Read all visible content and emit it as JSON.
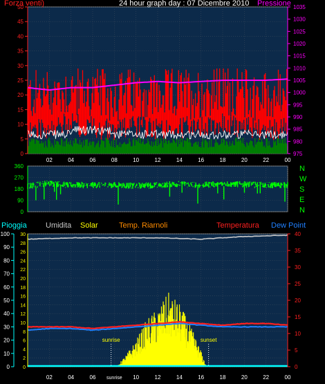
{
  "header": {
    "wind_label": "Forza venti)",
    "title": "24 hour graph day : 07 Dicembre 2010",
    "pressure_label": "Pressione"
  },
  "legend": {
    "rain": "Pioggia",
    "humidity": "Umidita",
    "solar": "Solar",
    "temp_riarnoli": "Temp. Riarnoli",
    "temperature": "Temperatura",
    "dew_point": "Dew Point"
  },
  "wind_direction_letters": [
    "N",
    "W",
    "S",
    "E",
    "N"
  ],
  "markers": {
    "sunrise": "sunrise",
    "sunset": "sunset"
  },
  "colors": {
    "wind_gust": "#ff0000",
    "wind_avg": "#ffffff",
    "wind_low": "#008000",
    "pressure": "#ff00ff",
    "direction": "#00ff00",
    "humidity": "#c8c8c8",
    "temperature": "#ff2020",
    "dew_point": "#2080ff",
    "solar": "#ffff00",
    "rain": "#00ffff",
    "left_axis": "#ff2020",
    "pressure_axis": "#ff00ff",
    "direction_axis": "#00ff00",
    "plot_bg": "#0c2a4a"
  },
  "chart_data": [
    {
      "type": "line",
      "title": "24 hour graph day : 07 Dicembre 2010",
      "x_ticks": [
        "02",
        "04",
        "06",
        "08",
        "10",
        "12",
        "14",
        "16",
        "18",
        "20",
        "22",
        "00"
      ],
      "y_left_ticks": [
        "0",
        "5",
        "10",
        "15",
        "20",
        "25",
        "30",
        "35",
        "40",
        "45",
        "50"
      ],
      "y_left_range": [
        0,
        50
      ],
      "y_right_ticks": [
        "975",
        "980",
        "985",
        "990",
        "995",
        "1000",
        "1005",
        "1010",
        "1015",
        "1020",
        "1025",
        "1030",
        "1035"
      ],
      "y_right_range": [
        975,
        1035
      ],
      "x_range_hours": [
        0,
        24
      ],
      "series": [
        {
          "name": "Forza venti)",
          "x": [
            0,
            2,
            4,
            6,
            8,
            10,
            12,
            14,
            16,
            18,
            20,
            22,
            24
          ],
          "values": [
            16,
            17,
            18,
            17,
            16,
            17,
            16,
            17,
            17,
            18,
            17,
            16,
            17
          ]
        },
        {
          "name": "Pressione",
          "x": [
            0,
            1,
            2,
            3,
            4,
            6,
            8,
            10,
            12,
            14,
            16,
            18,
            20,
            22,
            24
          ],
          "values": [
            1002,
            1001.5,
            1001,
            1001.5,
            1002,
            1002,
            1003,
            1004,
            1004.5,
            1004,
            1004.5,
            1005,
            1005,
            1005,
            1005.5
          ]
        }
      ]
    },
    {
      "type": "scatter",
      "y_ticks": [
        "0",
        "90",
        "180",
        "270",
        "360"
      ],
      "y_range": [
        0,
        360
      ],
      "x_range_hours": [
        0,
        24
      ],
      "series": [
        {
          "x": [
            0,
            1,
            2,
            3,
            4,
            6,
            8,
            10,
            12,
            14,
            16,
            18,
            20,
            22,
            24
          ],
          "values": [
            200,
            215,
            225,
            215,
            210,
            210,
            210,
            205,
            210,
            220,
            210,
            220,
            215,
            210,
            210
          ]
        }
      ]
    },
    {
      "type": "line",
      "x_ticks": [
        "02",
        "04",
        "06",
        "sunrise",
        "10",
        "12",
        "14",
        "16",
        "18",
        "20",
        "22",
        "00"
      ],
      "x_range_hours": [
        0,
        24
      ],
      "y_left_outer_ticks": [
        "0",
        "10",
        "20",
        "30",
        "40",
        "50",
        "60",
        "70",
        "80",
        "90",
        "100"
      ],
      "y_left_outer_range": [
        0,
        100
      ],
      "y_left_inner_ticks": [
        "0",
        "2",
        "4",
        "6",
        "8",
        "10",
        "12",
        "14",
        "16",
        "18",
        "20",
        "22",
        "24",
        "26",
        "28",
        "30"
      ],
      "y_left_inner_range": [
        0,
        30
      ],
      "y_right_ticks": [
        "0",
        "5",
        "10",
        "15",
        "20",
        "25",
        "30",
        "35",
        "40"
      ],
      "y_right_range": [
        0,
        40
      ],
      "series": [
        {
          "name": "Umidita",
          "x": [
            0,
            4,
            8,
            12,
            16,
            20,
            24
          ],
          "values": [
            96,
            97,
            97,
            97,
            96,
            98,
            99
          ]
        },
        {
          "name": "Temperatura",
          "x": [
            0,
            2,
            4,
            6,
            8,
            10,
            12,
            14,
            16,
            18,
            20,
            22,
            24
          ],
          "values": [
            12,
            12,
            12,
            11.5,
            12,
            12.5,
            13,
            13.5,
            13,
            12.5,
            13,
            13,
            12.5
          ]
        },
        {
          "name": "Dew Point",
          "x": [
            0,
            2,
            4,
            6,
            8,
            10,
            12,
            14,
            16,
            18,
            20,
            22,
            24
          ],
          "values": [
            11,
            11.5,
            11.5,
            11,
            11.5,
            12,
            12.5,
            13,
            12.5,
            12,
            12,
            12,
            12
          ]
        },
        {
          "name": "Solar",
          "x": [
            8.2,
            9,
            10,
            11,
            12,
            13,
            14,
            15,
            16,
            16.5
          ],
          "values": [
            0,
            2,
            5,
            9,
            11,
            14,
            12,
            8,
            3,
            0
          ]
        },
        {
          "name": "Pioggia",
          "x": [
            0,
            24
          ],
          "values": [
            0,
            0
          ]
        }
      ],
      "annotations": [
        {
          "text": "sunrise",
          "x_hours": 7.7
        },
        {
          "text": "sunset",
          "x_hours": 16.7
        }
      ]
    }
  ]
}
